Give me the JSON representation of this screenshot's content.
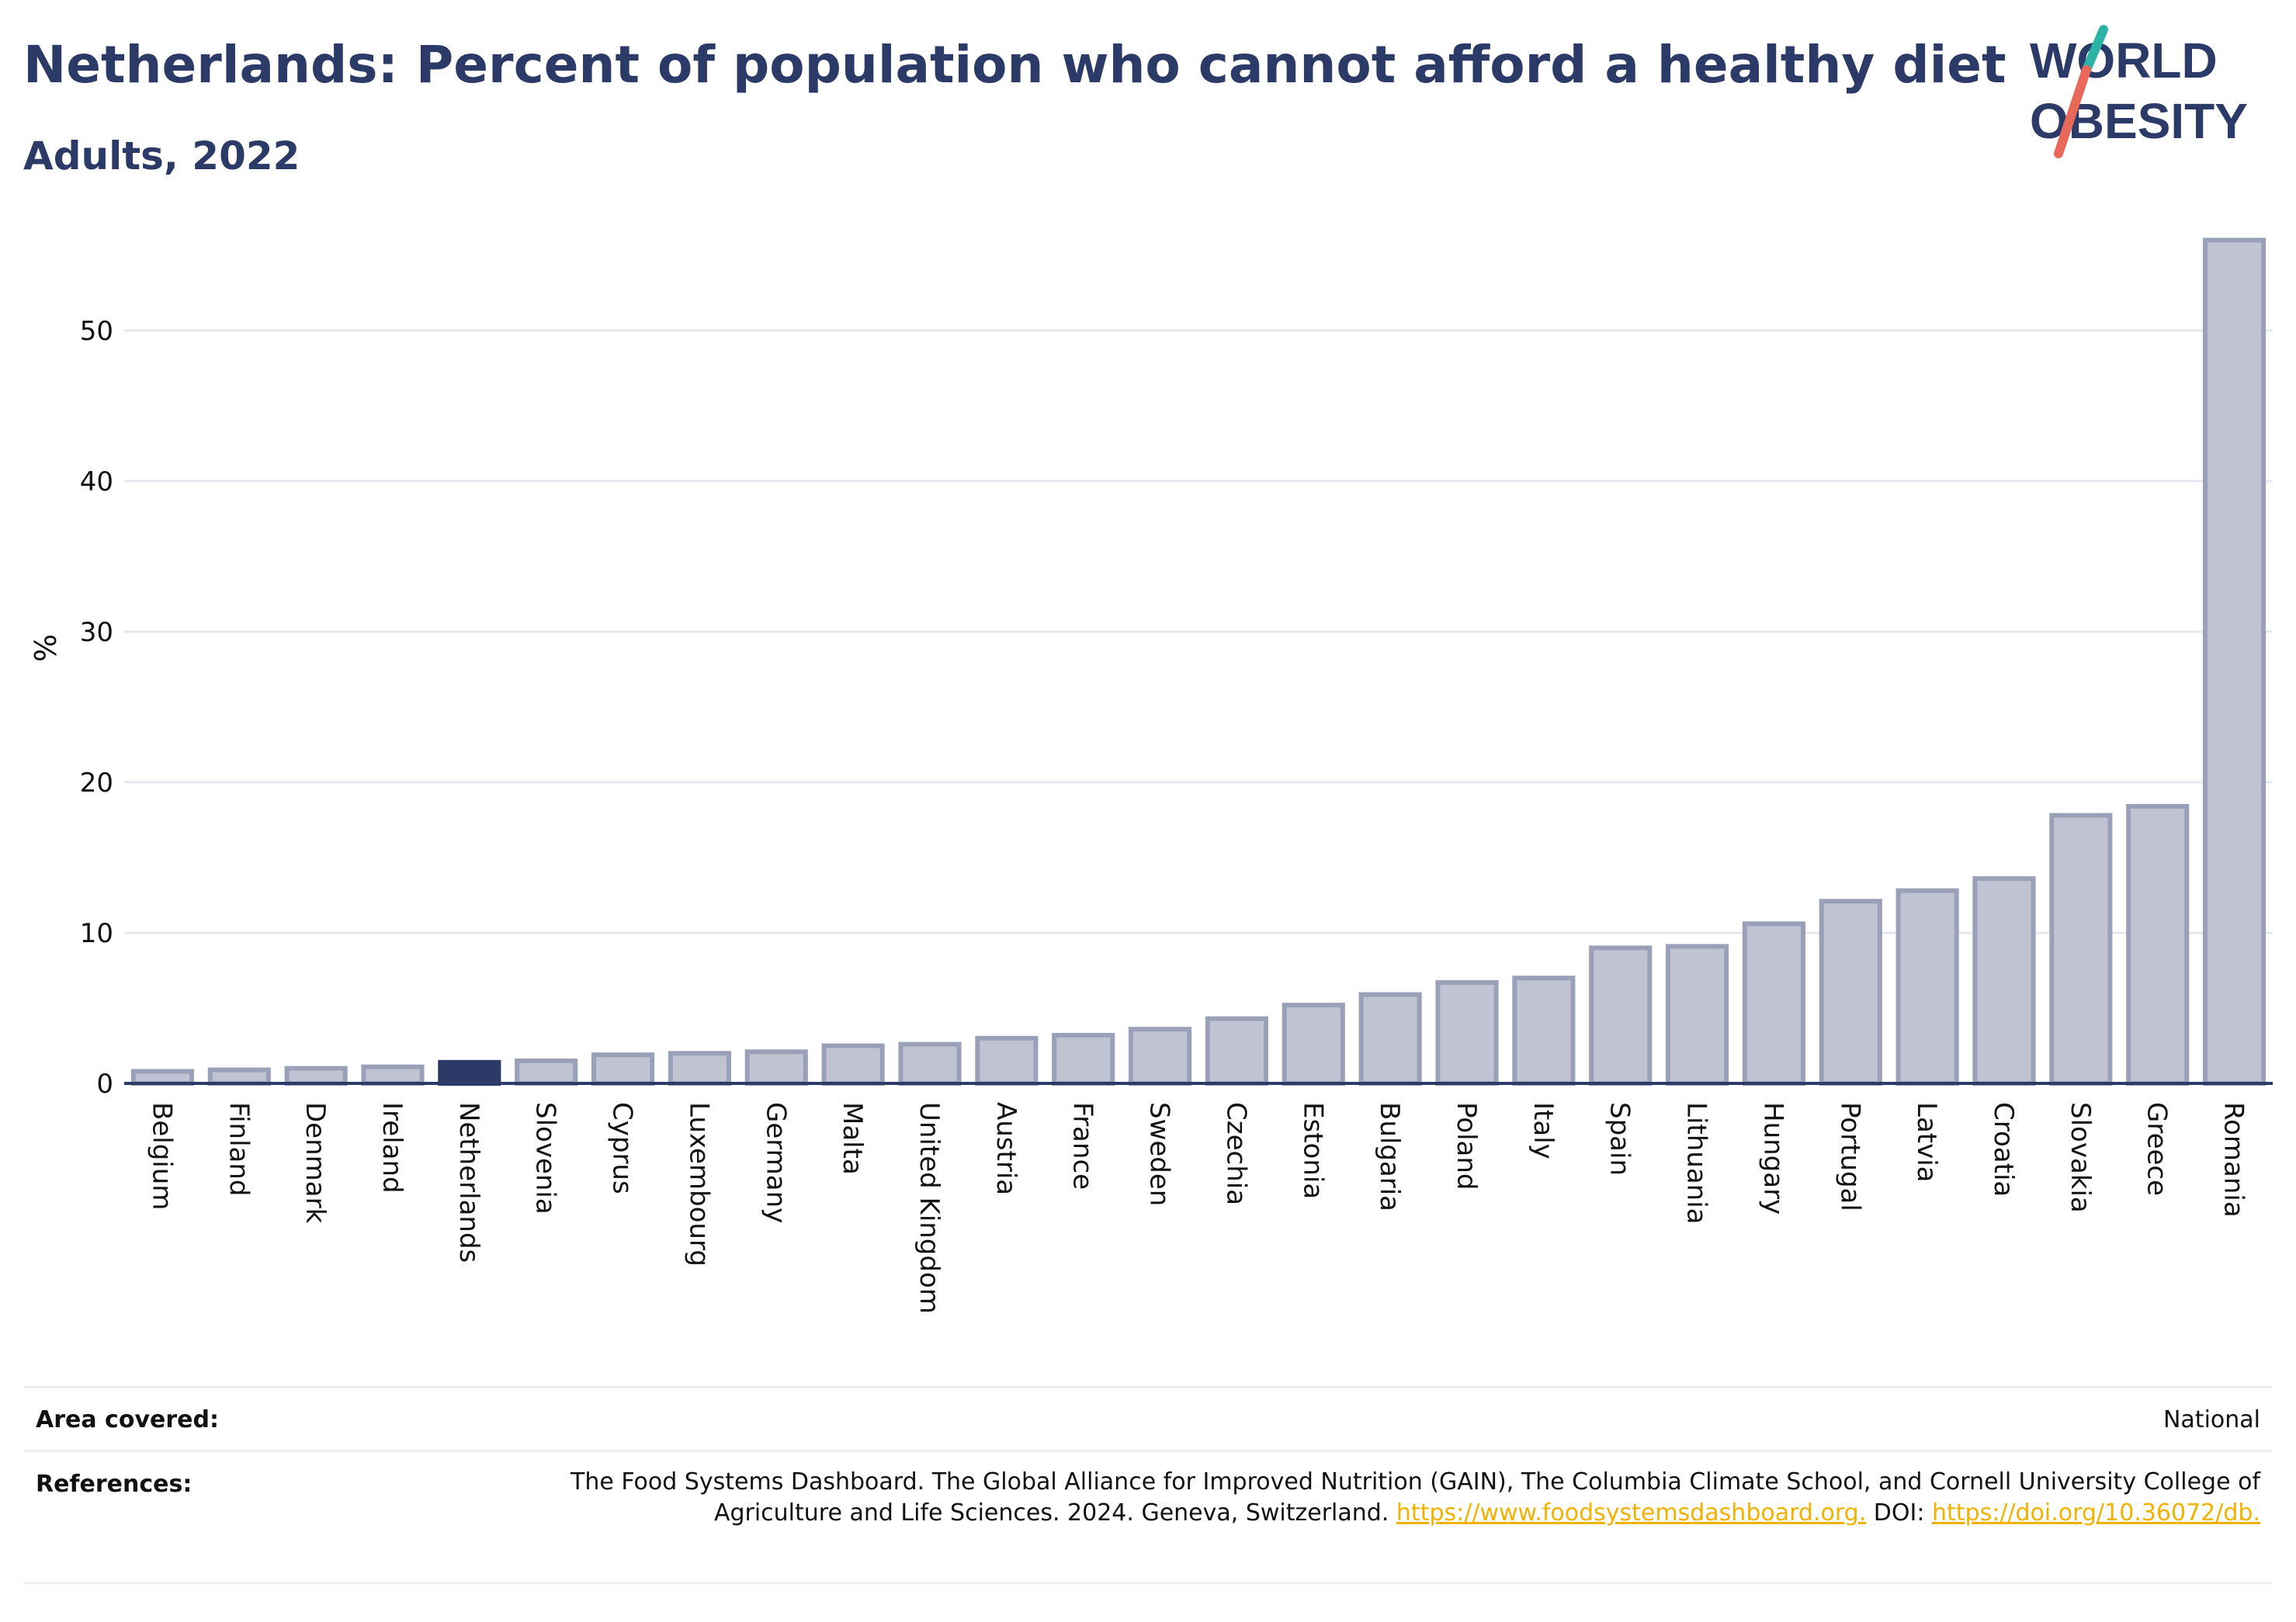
{
  "header": {
    "title": "Netherlands: Percent of population who cannot afford a healthy diet",
    "subtitle": "Adults, 2022"
  },
  "logo": {
    "text_line1": "WORLD",
    "text_line2": "OBESITY",
    "colors": {
      "text": "#2b3a67",
      "slash_top": "#2bb3a6",
      "slash_bottom": "#e8685a"
    }
  },
  "colors": {
    "bar_fill": "#bfc3d2",
    "bar_stroke": "#9aa0b8",
    "highlight": "#2b3a67",
    "grid": "#e6e8f0",
    "axis": "#2b3a67",
    "link": "#f2b200"
  },
  "chart_data": {
    "type": "bar",
    "ylabel": "%",
    "xlabel": "",
    "ylim": [
      0,
      57
    ],
    "yticks": [
      0,
      10,
      20,
      30,
      40,
      50
    ],
    "grid": true,
    "highlight": "Netherlands",
    "categories": [
      "Belgium",
      "Finland",
      "Denmark",
      "Ireland",
      "Netherlands",
      "Slovenia",
      "Cyprus",
      "Luxembourg",
      "Germany",
      "Malta",
      "United Kingdom",
      "Austria",
      "France",
      "Sweden",
      "Czechia",
      "Estonia",
      "Bulgaria",
      "Poland",
      "Italy",
      "Spain",
      "Lithuania",
      "Hungary",
      "Portugal",
      "Latvia",
      "Croatia",
      "Slovakia",
      "Greece",
      "Romania"
    ],
    "values": [
      0.8,
      0.9,
      1.0,
      1.1,
      1.4,
      1.5,
      1.9,
      2.0,
      2.1,
      2.5,
      2.6,
      3.0,
      3.2,
      3.6,
      4.3,
      5.2,
      5.9,
      6.7,
      7.0,
      9.0,
      9.1,
      10.6,
      12.1,
      12.8,
      13.6,
      17.8,
      18.4,
      56.0
    ]
  },
  "footer": {
    "area_label": "Area covered:",
    "area_value": "National",
    "references_label": "References:",
    "references_text": "The Food Systems Dashboard. The Global Alliance for Improved Nutrition (GAIN), The Columbia Climate School, and Cornell University College of Agriculture and Life Sciences. 2024. Geneva, Switzerland.",
    "references_link1": "https://www.foodsystemsdashboard.org.",
    "references_doi_label": "DOI:",
    "references_link2": "https://doi.org/10.36072/db."
  }
}
